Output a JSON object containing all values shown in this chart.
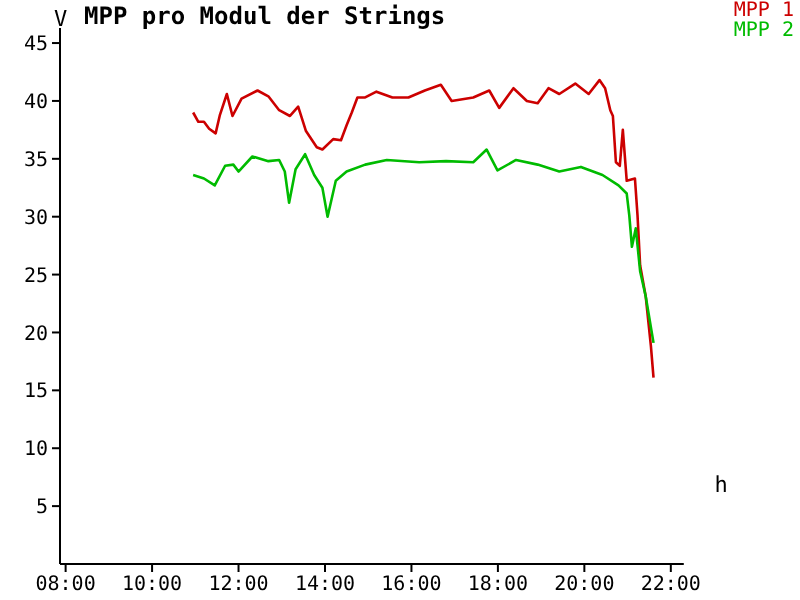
{
  "chart_data": {
    "type": "line",
    "title": "MPP pro Modul der Strings",
    "xlabel": "h",
    "ylabel": "V",
    "xlim": [
      7.87,
      22.3
    ],
    "ylim": [
      0,
      46.3
    ],
    "xticks": [
      {
        "value": 8,
        "label": "08:00"
      },
      {
        "value": 10,
        "label": "10:00"
      },
      {
        "value": 12,
        "label": "12:00"
      },
      {
        "value": 14,
        "label": "14:00"
      },
      {
        "value": 16,
        "label": "16:00"
      },
      {
        "value": 18,
        "label": "18:00"
      },
      {
        "value": 20,
        "label": "20:00"
      },
      {
        "value": 22,
        "label": "22:00"
      }
    ],
    "yticks": [
      5,
      10,
      15,
      20,
      25,
      30,
      35,
      40,
      45
    ],
    "grid": false,
    "legend": "top right",
    "marker": "none",
    "line_style": "solid",
    "series": [
      {
        "name": "MPP 1",
        "color": "#cc0000",
        "x": [
          10.95,
          11.07,
          11.2,
          11.32,
          11.47,
          11.57,
          11.73,
          11.86,
          12.07,
          12.44,
          12.69,
          12.94,
          13.19,
          13.38,
          13.56,
          13.81,
          13.94,
          14.19,
          14.37,
          14.5,
          14.62,
          14.75,
          14.93,
          15.19,
          15.56,
          15.93,
          16.31,
          16.68,
          16.93,
          17.43,
          17.8,
          18.03,
          18.36,
          18.67,
          18.92,
          19.17,
          19.42,
          19.79,
          20.1,
          20.35,
          20.48,
          20.6,
          20.66,
          20.73,
          20.82,
          20.89,
          20.98,
          21.17,
          21.23,
          21.29,
          21.42,
          21.54,
          21.6
        ],
        "values": [
          39.0,
          38.2,
          38.2,
          37.6,
          37.2,
          38.8,
          40.6,
          38.7,
          40.2,
          40.9,
          40.4,
          39.2,
          38.7,
          39.5,
          37.4,
          36.0,
          35.8,
          36.7,
          36.6,
          37.9,
          39.0,
          40.3,
          40.3,
          40.8,
          40.3,
          40.3,
          40.9,
          41.4,
          40.0,
          40.3,
          40.9,
          39.4,
          41.1,
          40.0,
          39.8,
          41.1,
          40.6,
          41.5,
          40.6,
          41.8,
          41.1,
          39.2,
          38.7,
          34.7,
          34.4,
          37.5,
          33.1,
          33.3,
          30.1,
          25.8,
          23.1,
          18.8,
          16.1
        ]
      },
      {
        "name": "MPP 2",
        "color": "#00bb00",
        "x": [
          10.95,
          11.2,
          11.45,
          11.69,
          11.88,
          12.0,
          12.32,
          12.69,
          12.94,
          13.07,
          13.17,
          13.32,
          13.54,
          13.75,
          13.94,
          14.06,
          14.25,
          14.5,
          14.93,
          15.43,
          16.18,
          16.8,
          17.43,
          17.74,
          17.99,
          18.42,
          18.92,
          19.42,
          19.92,
          20.42,
          20.79,
          20.98,
          21.04,
          21.1,
          21.19,
          21.29,
          21.42,
          21.6
        ],
        "values": [
          33.6,
          33.3,
          32.7,
          34.4,
          34.5,
          33.9,
          35.2,
          34.8,
          34.9,
          33.9,
          31.2,
          34.1,
          35.4,
          33.6,
          32.5,
          30.0,
          33.1,
          33.9,
          34.5,
          34.9,
          34.7,
          34.8,
          34.7,
          35.8,
          34.0,
          34.9,
          34.5,
          33.9,
          34.3,
          33.6,
          32.7,
          32.0,
          30.1,
          27.4,
          29.0,
          25.3,
          23.1,
          19.1
        ]
      }
    ]
  }
}
